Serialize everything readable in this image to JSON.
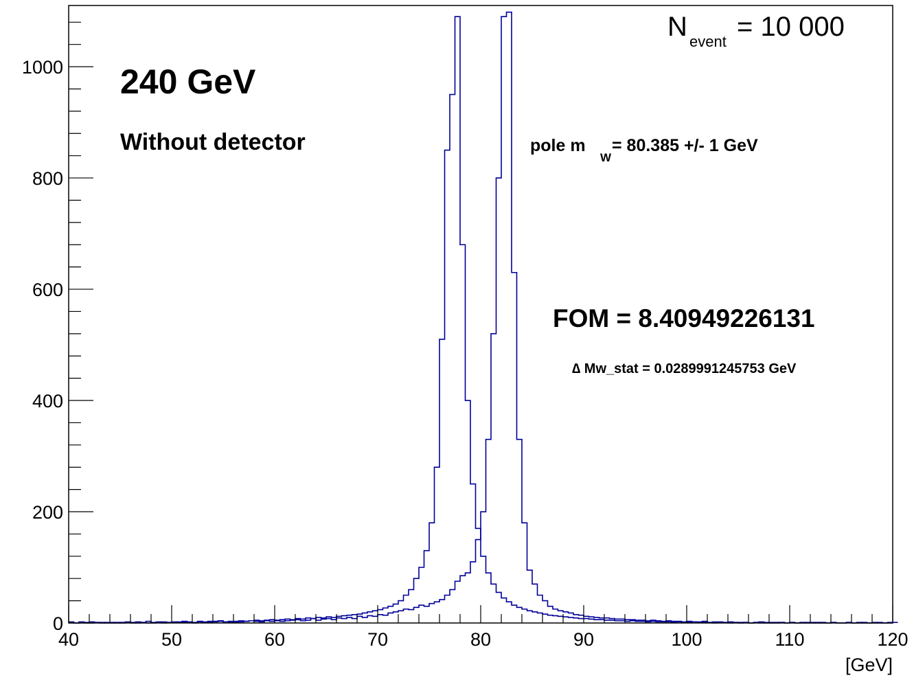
{
  "chart_data": {
    "type": "histogram",
    "title": "",
    "xlabel": "[GeV]",
    "ylabel": "",
    "xlim": [
      40,
      120
    ],
    "ylim": [
      0,
      1110
    ],
    "x_ticks": [
      40,
      50,
      60,
      70,
      80,
      90,
      100,
      110,
      120
    ],
    "y_ticks": [
      0,
      200,
      400,
      600,
      800,
      1000
    ],
    "line_color": "#000099",
    "grid": false,
    "annotations": {
      "energy": "240 GeV",
      "detector": "Without detector",
      "nevent_main": "N",
      "nevent_sub": "event",
      "nevent_value": " = 10 000",
      "pole_prefix": "pole m",
      "pole_sub": "W",
      "pole_value": " = 80.385 +/- 1 GeV",
      "fom": "FOM = 8.40949226131",
      "dmw": "∆ Mw_stat = 0.0289991245753 GeV"
    },
    "series": [
      {
        "bin_edges_start": 40,
        "bin_width": 0.5,
        "values": [
          2,
          0,
          1,
          0,
          2,
          1,
          1,
          0,
          0,
          1,
          0,
          2,
          1,
          0,
          1,
          3,
          0,
          1,
          2,
          1,
          1,
          2,
          3,
          1,
          0,
          2,
          1,
          3,
          3,
          4,
          2,
          1,
          1,
          2,
          3,
          4,
          3,
          2,
          5,
          3,
          4,
          3,
          4,
          5,
          6,
          4,
          5,
          8,
          5,
          7,
          8,
          6,
          9,
          8,
          10,
          8,
          12,
          10,
          13,
          12,
          15,
          14,
          18,
          20,
          22,
          25,
          24,
          28,
          32,
          30,
          35,
          38,
          42,
          50,
          60,
          75,
          85,
          90,
          110,
          150,
          200,
          330,
          520,
          800,
          1090,
          1098,
          630,
          330,
          180,
          95,
          70,
          50,
          40,
          30,
          25,
          22,
          20,
          18,
          15,
          14,
          12,
          11,
          10,
          9,
          9,
          8,
          7,
          7,
          6,
          6,
          5,
          5,
          4,
          5,
          4,
          3,
          4,
          3,
          3,
          2,
          3,
          2,
          2,
          3,
          1,
          2,
          2,
          1,
          2,
          1,
          1,
          1,
          0,
          1,
          2,
          0,
          1,
          1,
          1,
          0,
          1,
          0,
          1,
          0,
          1,
          0,
          1,
          0,
          1,
          0,
          0,
          1,
          0,
          1,
          0,
          0,
          1,
          0,
          0,
          1
        ]
      },
      {
        "bin_edges_start": 40,
        "bin_width": 0.5,
        "values": [
          1,
          0,
          2,
          1,
          0,
          1,
          0,
          1,
          1,
          0,
          1,
          1,
          0,
          2,
          1,
          0,
          1,
          2,
          0,
          1,
          2,
          1,
          1,
          2,
          1,
          3,
          2,
          1,
          2,
          3,
          2,
          3,
          3,
          4,
          3,
          4,
          5,
          4,
          4,
          6,
          5,
          6,
          7,
          6,
          8,
          7,
          9,
          8,
          10,
          9,
          11,
          10,
          12,
          13,
          14,
          15,
          16,
          18,
          20,
          22,
          24,
          27,
          30,
          34,
          40,
          50,
          60,
          80,
          100,
          130,
          180,
          280,
          510,
          850,
          950,
          1090,
          680,
          400,
          250,
          170,
          120,
          90,
          70,
          55,
          45,
          38,
          32,
          28,
          25,
          22,
          20,
          18,
          16,
          14,
          13,
          12,
          11,
          10,
          9,
          8,
          8,
          7,
          6,
          6,
          5,
          5,
          4,
          4,
          3,
          4,
          3,
          3,
          2,
          3,
          2,
          2,
          2,
          1,
          2,
          1,
          1,
          2,
          1,
          1,
          1,
          0,
          1,
          1,
          0,
          1,
          0,
          1,
          0,
          1,
          0,
          1,
          0,
          0,
          1,
          0,
          1,
          0,
          0,
          1,
          0,
          1,
          0,
          0,
          1,
          0,
          0,
          1,
          0,
          0,
          1,
          0,
          0,
          1,
          0,
          0,
          1
        ]
      }
    ]
  }
}
